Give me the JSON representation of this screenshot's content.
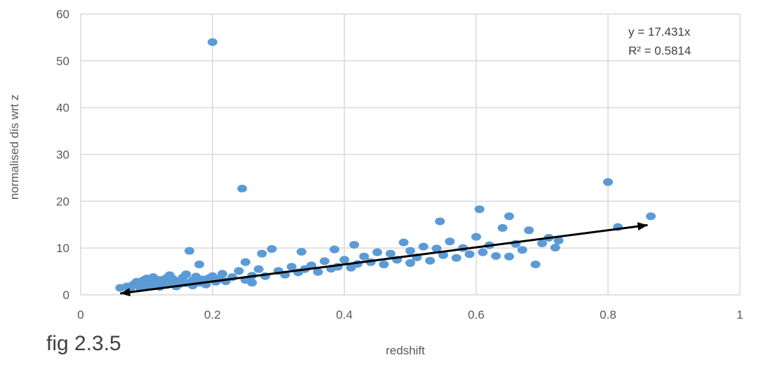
{
  "caption": "fig 2.3.5",
  "chart_data": {
    "type": "scatter",
    "title": "",
    "xlabel": "redshift",
    "ylabel": "normalised dis wrt z",
    "xlim": [
      0,
      1
    ],
    "ylim": [
      0,
      60
    ],
    "xticks": [
      0,
      0.2,
      0.4,
      0.6,
      0.8,
      1
    ],
    "xtick_labels": [
      "0",
      "0.2",
      "0.4",
      "0.6",
      "0.8",
      "1"
    ],
    "yticks": [
      0,
      10,
      20,
      30,
      40,
      50,
      60
    ],
    "ytick_labels": [
      "0",
      "10",
      "20",
      "30",
      "40",
      "50",
      "60"
    ],
    "grid": true,
    "marker_color": "#5B9BD5",
    "trendline": {
      "equation": "y = 17.431x",
      "r_squared": "R² = 0.5814",
      "slope": 17.431,
      "from": [
        0.06,
        0.3
      ],
      "to": [
        0.86,
        14.9
      ],
      "color": "#000000"
    },
    "series": [
      {
        "points": [
          [
            0.06,
            1.5
          ],
          [
            0.07,
            1.8
          ],
          [
            0.075,
            1.2
          ],
          [
            0.08,
            2.2
          ],
          [
            0.085,
            2.8
          ],
          [
            0.09,
            1.6
          ],
          [
            0.095,
            3.1
          ],
          [
            0.1,
            2.0
          ],
          [
            0.1,
            3.5
          ],
          [
            0.105,
            2.6
          ],
          [
            0.11,
            1.9
          ],
          [
            0.11,
            3.8
          ],
          [
            0.115,
            2.4
          ],
          [
            0.12,
            3.2
          ],
          [
            0.12,
            1.7
          ],
          [
            0.125,
            2.9
          ],
          [
            0.13,
            3.6
          ],
          [
            0.13,
            2.1
          ],
          [
            0.135,
            4.2
          ],
          [
            0.14,
            2.7
          ],
          [
            0.14,
            3.4
          ],
          [
            0.145,
            1.8
          ],
          [
            0.15,
            3.0
          ],
          [
            0.15,
            2.3
          ],
          [
            0.155,
            3.7
          ],
          [
            0.16,
            2.5
          ],
          [
            0.16,
            4.4
          ],
          [
            0.165,
            9.4
          ],
          [
            0.17,
            3.1
          ],
          [
            0.17,
            2.0
          ],
          [
            0.175,
            3.9
          ],
          [
            0.18,
            2.6
          ],
          [
            0.18,
            6.5
          ],
          [
            0.185,
            3.3
          ],
          [
            0.19,
            2.2
          ],
          [
            0.195,
            3.6
          ],
          [
            0.2,
            4.0
          ],
          [
            0.2,
            54.0
          ],
          [
            0.205,
            2.8
          ],
          [
            0.21,
            3.4
          ],
          [
            0.215,
            4.5
          ],
          [
            0.22,
            2.9
          ],
          [
            0.23,
            3.8
          ],
          [
            0.24,
            5.1
          ],
          [
            0.245,
            22.7
          ],
          [
            0.25,
            3.2
          ],
          [
            0.25,
            7.0
          ],
          [
            0.26,
            4.1
          ],
          [
            0.26,
            2.6
          ],
          [
            0.27,
            5.5
          ],
          [
            0.275,
            8.8
          ],
          [
            0.28,
            4.0
          ],
          [
            0.29,
            9.8
          ],
          [
            0.3,
            5.1
          ],
          [
            0.31,
            4.3
          ],
          [
            0.32,
            6.0
          ],
          [
            0.33,
            4.8
          ],
          [
            0.335,
            9.2
          ],
          [
            0.34,
            5.5
          ],
          [
            0.35,
            6.3
          ],
          [
            0.36,
            4.9
          ],
          [
            0.37,
            7.2
          ],
          [
            0.38,
            5.6
          ],
          [
            0.385,
            9.7
          ],
          [
            0.39,
            6.0
          ],
          [
            0.4,
            7.5
          ],
          [
            0.41,
            5.8
          ],
          [
            0.415,
            10.7
          ],
          [
            0.42,
            6.6
          ],
          [
            0.43,
            8.2
          ],
          [
            0.44,
            7.0
          ],
          [
            0.45,
            9.1
          ],
          [
            0.46,
            6.5
          ],
          [
            0.47,
            8.8
          ],
          [
            0.48,
            7.5
          ],
          [
            0.49,
            11.2
          ],
          [
            0.5,
            6.8
          ],
          [
            0.5,
            9.4
          ],
          [
            0.51,
            8.0
          ],
          [
            0.52,
            10.3
          ],
          [
            0.53,
            7.3
          ],
          [
            0.54,
            9.9
          ],
          [
            0.545,
            15.7
          ],
          [
            0.55,
            8.5
          ],
          [
            0.56,
            11.4
          ],
          [
            0.57,
            7.9
          ],
          [
            0.58,
            10.0
          ],
          [
            0.59,
            8.7
          ],
          [
            0.6,
            12.4
          ],
          [
            0.605,
            18.3
          ],
          [
            0.61,
            9.1
          ],
          [
            0.62,
            10.6
          ],
          [
            0.63,
            8.3
          ],
          [
            0.64,
            14.3
          ],
          [
            0.65,
            16.8
          ],
          [
            0.65,
            8.2
          ],
          [
            0.66,
            10.9
          ],
          [
            0.67,
            9.6
          ],
          [
            0.68,
            13.8
          ],
          [
            0.69,
            6.5
          ],
          [
            0.7,
            11.0
          ],
          [
            0.71,
            12.2
          ],
          [
            0.72,
            10.1
          ],
          [
            0.725,
            11.6
          ],
          [
            0.8,
            24.1
          ],
          [
            0.815,
            14.5
          ],
          [
            0.865,
            16.8
          ]
        ]
      }
    ]
  }
}
